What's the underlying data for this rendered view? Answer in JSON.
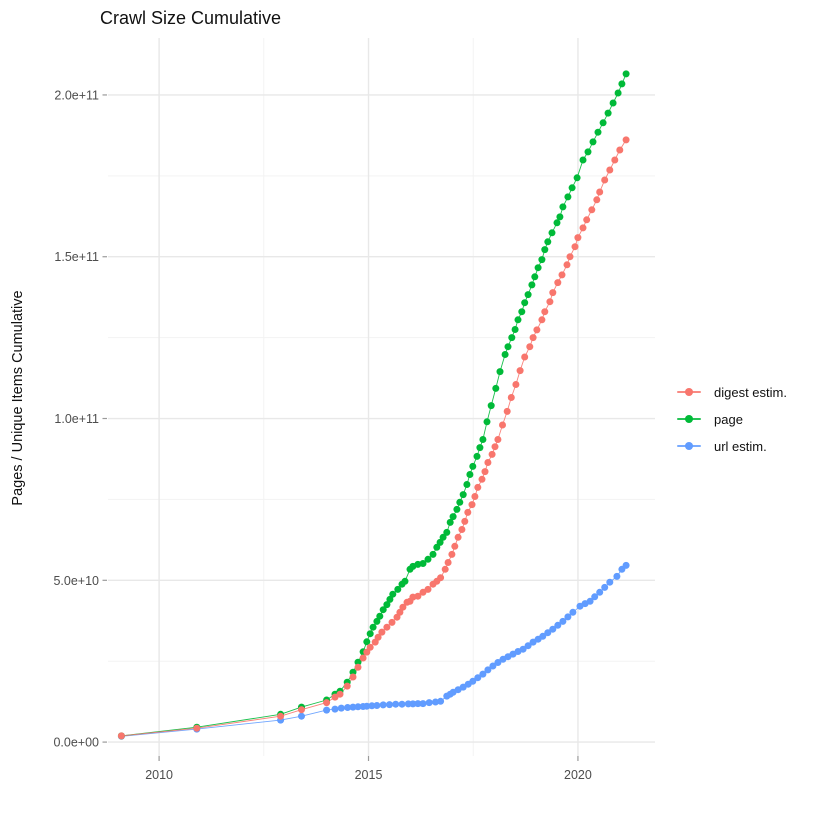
{
  "title": "Crawl Size Cumulative",
  "legend": {
    "position": "right",
    "items": [
      {
        "label": "digest estim.",
        "color": "#F8766D"
      },
      {
        "label": "page",
        "color": "#00BA38"
      },
      {
        "label": "url estim.",
        "color": "#619CFF"
      }
    ]
  },
  "colors": {
    "background": "#FFFFFF",
    "grid_major": "#E8E8E8",
    "grid_minor": "#F3F3F3",
    "tick_mark": "#9a9a9a",
    "tick_text": "#4D4D4D"
  },
  "chart_data": {
    "type": "scatter",
    "style": "points connected by thin lines (ggplot2 look)",
    "title": "Crawl Size Cumulative",
    "xlabel": "",
    "ylabel": "Pages / Unique Items Cumulative",
    "y_values_unit": "1e9 pages (billions); axis labels shown in scientific notation",
    "x_range": [
      2008.78,
      2021.84
    ],
    "y_range_billions": [
      -4.3,
      217.6
    ],
    "grid": true,
    "legend_position": "right",
    "x_ticks": [
      {
        "value": 2010,
        "label": "2010"
      },
      {
        "value": 2015,
        "label": "2015"
      },
      {
        "value": 2020,
        "label": "2020"
      }
    ],
    "x_minor_ticks": [
      2012.5,
      2017.5
    ],
    "y_ticks": [
      {
        "value": 0,
        "label": "0.0e+00"
      },
      {
        "value": 50,
        "label": "5.0e+10"
      },
      {
        "value": 100,
        "label": "1.0e+11"
      },
      {
        "value": 150,
        "label": "1.5e+11"
      },
      {
        "value": 200,
        "label": "2.0e+11"
      }
    ],
    "y_minor_ticks": [
      25,
      75,
      125,
      175
    ],
    "series": [
      {
        "name": "url estim.",
        "color": "#619CFF",
        "points": [
          [
            2009.1,
            1.8
          ],
          [
            2010.9,
            4.0
          ],
          [
            2012.9,
            6.8
          ],
          [
            2013.4,
            8.0
          ],
          [
            2014.0,
            9.9
          ],
          [
            2014.2,
            10.2
          ],
          [
            2014.35,
            10.5
          ],
          [
            2014.5,
            10.7
          ],
          [
            2014.63,
            10.8
          ],
          [
            2014.75,
            10.9
          ],
          [
            2014.87,
            11.0
          ],
          [
            2014.96,
            11.1
          ],
          [
            2015.08,
            11.2
          ],
          [
            2015.2,
            11.3
          ],
          [
            2015.35,
            11.5
          ],
          [
            2015.5,
            11.6
          ],
          [
            2015.65,
            11.7
          ],
          [
            2015.8,
            11.7
          ],
          [
            2015.95,
            11.8
          ],
          [
            2016.06,
            11.8
          ],
          [
            2016.18,
            11.9
          ],
          [
            2016.3,
            11.9
          ],
          [
            2016.45,
            12.2
          ],
          [
            2016.6,
            12.4
          ],
          [
            2016.72,
            12.6
          ],
          [
            2016.87,
            14.2
          ],
          [
            2016.95,
            14.8
          ],
          [
            2017.02,
            15.4
          ],
          [
            2017.14,
            16.2
          ],
          [
            2017.26,
            17.0
          ],
          [
            2017.38,
            17.9
          ],
          [
            2017.49,
            18.8
          ],
          [
            2017.61,
            19.9
          ],
          [
            2017.73,
            21.0
          ],
          [
            2017.85,
            22.3
          ],
          [
            2017.97,
            23.5
          ],
          [
            2018.09,
            24.6
          ],
          [
            2018.21,
            25.6
          ],
          [
            2018.33,
            26.4
          ],
          [
            2018.45,
            27.2
          ],
          [
            2018.57,
            28.0
          ],
          [
            2018.69,
            28.7
          ],
          [
            2018.81,
            29.8
          ],
          [
            2018.93,
            30.9
          ],
          [
            2019.05,
            31.8
          ],
          [
            2019.16,
            32.7
          ],
          [
            2019.28,
            33.8
          ],
          [
            2019.4,
            34.9
          ],
          [
            2019.52,
            36.1
          ],
          [
            2019.64,
            37.3
          ],
          [
            2019.76,
            38.7
          ],
          [
            2019.88,
            40.1
          ],
          [
            2020.05,
            42.0
          ],
          [
            2020.17,
            42.8
          ],
          [
            2020.29,
            43.5
          ],
          [
            2020.4,
            44.9
          ],
          [
            2020.52,
            46.3
          ],
          [
            2020.64,
            47.8
          ],
          [
            2020.76,
            49.4
          ],
          [
            2020.93,
            51.2
          ],
          [
            2021.05,
            53.4
          ],
          [
            2021.15,
            54.6
          ]
        ]
      },
      {
        "name": "page",
        "color": "#00BA38",
        "points": [
          [
            2009.1,
            1.9
          ],
          [
            2010.9,
            4.6
          ],
          [
            2012.9,
            8.6
          ],
          [
            2013.4,
            10.8
          ],
          [
            2014.0,
            13.0
          ],
          [
            2014.2,
            14.8
          ],
          [
            2014.32,
            15.7
          ],
          [
            2014.49,
            18.5
          ],
          [
            2014.63,
            21.6
          ],
          [
            2014.75,
            24.7
          ],
          [
            2014.87,
            27.9
          ],
          [
            2014.96,
            31.0
          ],
          [
            2015.04,
            33.5
          ],
          [
            2015.11,
            35.5
          ],
          [
            2015.2,
            37.3
          ],
          [
            2015.27,
            38.9
          ],
          [
            2015.35,
            40.9
          ],
          [
            2015.44,
            42.5
          ],
          [
            2015.51,
            44.1
          ],
          [
            2015.58,
            45.7
          ],
          [
            2015.7,
            47.2
          ],
          [
            2015.8,
            48.8
          ],
          [
            2015.87,
            49.7
          ],
          [
            2015.99,
            53.4
          ],
          [
            2016.06,
            54.3
          ],
          [
            2016.18,
            54.9
          ],
          [
            2016.3,
            55.2
          ],
          [
            2016.42,
            56.5
          ],
          [
            2016.54,
            58.0
          ],
          [
            2016.63,
            60.2
          ],
          [
            2016.71,
            61.7
          ],
          [
            2016.78,
            63.3
          ],
          [
            2016.87,
            64.8
          ],
          [
            2016.95,
            67.9
          ],
          [
            2017.02,
            69.7
          ],
          [
            2017.11,
            71.9
          ],
          [
            2017.18,
            74.1
          ],
          [
            2017.26,
            76.5
          ],
          [
            2017.35,
            79.6
          ],
          [
            2017.42,
            82.7
          ],
          [
            2017.49,
            85.2
          ],
          [
            2017.59,
            88.3
          ],
          [
            2017.66,
            91.0
          ],
          [
            2017.73,
            93.5
          ],
          [
            2017.83,
            99.0
          ],
          [
            2017.93,
            104.0
          ],
          [
            2018.04,
            109.3
          ],
          [
            2018.14,
            114.5
          ],
          [
            2018.26,
            119.8
          ],
          [
            2018.33,
            122.2
          ],
          [
            2018.42,
            125.0
          ],
          [
            2018.5,
            127.5
          ],
          [
            2018.57,
            130.5
          ],
          [
            2018.66,
            133.0
          ],
          [
            2018.73,
            135.8
          ],
          [
            2018.81,
            138.3
          ],
          [
            2018.9,
            141.3
          ],
          [
            2018.97,
            143.8
          ],
          [
            2019.05,
            146.6
          ],
          [
            2019.14,
            149.1
          ],
          [
            2019.21,
            152.2
          ],
          [
            2019.28,
            154.6
          ],
          [
            2019.38,
            157.4
          ],
          [
            2019.5,
            160.5
          ],
          [
            2019.57,
            162.3
          ],
          [
            2019.64,
            165.4
          ],
          [
            2019.76,
            168.5
          ],
          [
            2019.86,
            171.3
          ],
          [
            2019.98,
            174.4
          ],
          [
            2020.12,
            179.9
          ],
          [
            2020.24,
            182.4
          ],
          [
            2020.36,
            185.5
          ],
          [
            2020.48,
            188.5
          ],
          [
            2020.6,
            191.4
          ],
          [
            2020.72,
            194.4
          ],
          [
            2020.84,
            197.5
          ],
          [
            2020.96,
            200.6
          ],
          [
            2021.05,
            203.4
          ],
          [
            2021.15,
            206.5
          ]
        ]
      },
      {
        "name": "digest estim.",
        "color": "#F8766D",
        "points": [
          [
            2009.1,
            1.9
          ],
          [
            2010.9,
            4.3
          ],
          [
            2012.9,
            8.0
          ],
          [
            2013.4,
            10.0
          ],
          [
            2014.0,
            12.2
          ],
          [
            2014.2,
            13.9
          ],
          [
            2014.32,
            14.8
          ],
          [
            2014.49,
            17.3
          ],
          [
            2014.63,
            20.1
          ],
          [
            2014.75,
            23.1
          ],
          [
            2014.87,
            26.0
          ],
          [
            2014.96,
            27.8
          ],
          [
            2015.04,
            29.3
          ],
          [
            2015.16,
            30.9
          ],
          [
            2015.23,
            32.4
          ],
          [
            2015.32,
            34.0
          ],
          [
            2015.44,
            35.5
          ],
          [
            2015.56,
            37.0
          ],
          [
            2015.68,
            38.6
          ],
          [
            2015.75,
            40.1
          ],
          [
            2015.82,
            41.7
          ],
          [
            2015.92,
            43.2
          ],
          [
            2015.99,
            43.5
          ],
          [
            2016.06,
            44.8
          ],
          [
            2016.18,
            45.1
          ],
          [
            2016.3,
            46.3
          ],
          [
            2016.42,
            47.2
          ],
          [
            2016.54,
            48.8
          ],
          [
            2016.63,
            49.7
          ],
          [
            2016.72,
            50.8
          ],
          [
            2016.83,
            53.4
          ],
          [
            2016.9,
            55.5
          ],
          [
            2016.99,
            58.0
          ],
          [
            2017.06,
            60.5
          ],
          [
            2017.14,
            63.3
          ],
          [
            2017.23,
            65.7
          ],
          [
            2017.3,
            68.2
          ],
          [
            2017.37,
            71.0
          ],
          [
            2017.47,
            73.4
          ],
          [
            2017.54,
            75.9
          ],
          [
            2017.61,
            78.7
          ],
          [
            2017.71,
            81.2
          ],
          [
            2017.78,
            83.6
          ],
          [
            2017.85,
            86.4
          ],
          [
            2017.95,
            88.9
          ],
          [
            2018.02,
            91.3
          ],
          [
            2018.09,
            93.5
          ],
          [
            2018.2,
            98.0
          ],
          [
            2018.31,
            102.2
          ],
          [
            2018.41,
            106.5
          ],
          [
            2018.52,
            110.5
          ],
          [
            2018.62,
            114.8
          ],
          [
            2018.73,
            119.0
          ],
          [
            2018.85,
            122.2
          ],
          [
            2018.93,
            125.0
          ],
          [
            2019.02,
            127.4
          ],
          [
            2019.14,
            130.5
          ],
          [
            2019.21,
            133.0
          ],
          [
            2019.33,
            136.1
          ],
          [
            2019.4,
            138.9
          ],
          [
            2019.52,
            142.0
          ],
          [
            2019.62,
            144.4
          ],
          [
            2019.74,
            147.5
          ],
          [
            2019.81,
            150.0
          ],
          [
            2019.93,
            153.1
          ],
          [
            2020.0,
            155.9
          ],
          [
            2020.12,
            158.9
          ],
          [
            2020.21,
            161.4
          ],
          [
            2020.33,
            164.5
          ],
          [
            2020.45,
            167.6
          ],
          [
            2020.52,
            170.0
          ],
          [
            2020.64,
            173.7
          ],
          [
            2020.76,
            176.8
          ],
          [
            2020.88,
            179.9
          ],
          [
            2021.0,
            183.0
          ],
          [
            2021.15,
            186.1
          ]
        ]
      }
    ]
  }
}
